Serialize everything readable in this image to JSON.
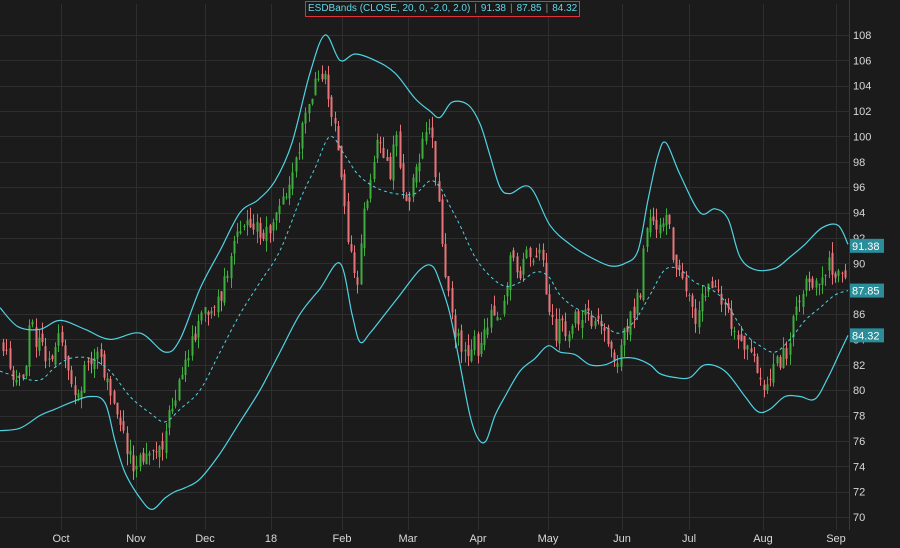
{
  "study": {
    "label": "ESDBands (CLOSE, 20, 0, -2.0, 2.0)",
    "upper": "91.38",
    "middle": "87.85",
    "lower": "84.32"
  },
  "colors": {
    "background": "#1b1b1b",
    "grid": "#2e2e2e",
    "band": "#4fd3e3",
    "up_candle": "#3fae3f",
    "down_candle": "#e8747a",
    "text": "#d8d8d8",
    "label_box": "#2a8d99"
  },
  "chart_data": {
    "type": "candlestick",
    "title": "",
    "x_labels": [
      "Oct",
      "Nov",
      "Dec",
      "18",
      "Feb",
      "Mar",
      "Apr",
      "May",
      "Jun",
      "Jul",
      "Aug",
      "Sep"
    ],
    "y_ticks": [
      70,
      72,
      74,
      76,
      78,
      80,
      82,
      84,
      86,
      88,
      90,
      92,
      94,
      96,
      98,
      100,
      102,
      104,
      106,
      108
    ],
    "ylim": [
      69.2,
      110
    ],
    "grid": true,
    "axis_position": "right",
    "price_labels": [
      {
        "value": 91.38,
        "text": "91.38",
        "series": "upper band"
      },
      {
        "value": 87.85,
        "text": "87.85",
        "series": "middle band"
      },
      {
        "value": 84.32,
        "text": "84.32",
        "series": "lower band"
      }
    ],
    "close_path": [
      [
        0,
        84.0
      ],
      [
        8,
        83.0
      ],
      [
        15,
        80.0
      ],
      [
        20,
        82.0
      ],
      [
        24,
        81.5
      ],
      [
        30,
        85.0
      ],
      [
        40,
        83.5
      ],
      [
        52,
        82.0
      ],
      [
        60,
        85.5
      ],
      [
        67,
        81.0
      ],
      [
        78,
        80.0
      ],
      [
        88,
        82.0
      ],
      [
        100,
        83.0
      ],
      [
        108,
        80.0
      ],
      [
        116,
        79.0
      ],
      [
        122,
        77.0
      ],
      [
        128,
        75.0
      ],
      [
        132,
        74.0
      ],
      [
        140,
        74.5
      ],
      [
        150,
        75.5
      ],
      [
        160,
        75.5
      ],
      [
        170,
        78.0
      ],
      [
        178,
        81.0
      ],
      [
        185,
        82.5
      ],
      [
        195,
        84.0
      ],
      [
        203,
        86.5
      ],
      [
        213,
        86.0
      ],
      [
        222,
        88.0
      ],
      [
        232,
        91.0
      ],
      [
        242,
        92.5
      ],
      [
        252,
        93.0
      ],
      [
        262,
        92.0
      ],
      [
        272,
        93.0
      ],
      [
        282,
        95.0
      ],
      [
        292,
        97.0
      ],
      [
        302,
        100.5
      ],
      [
        312,
        103.5
      ],
      [
        318,
        104.5
      ],
      [
        324,
        105.5
      ],
      [
        330,
        102.0
      ],
      [
        336,
        101.0
      ],
      [
        340,
        97.0
      ],
      [
        346,
        93.0
      ],
      [
        352,
        90.0
      ],
      [
        358,
        88.5
      ],
      [
        364,
        94.0
      ],
      [
        370,
        96.0
      ],
      [
        376,
        99.0
      ],
      [
        384,
        98.5
      ],
      [
        390,
        97.0
      ],
      [
        396,
        100.5
      ],
      [
        402,
        95.0
      ],
      [
        408,
        94.0
      ],
      [
        412,
        96.0
      ],
      [
        418,
        97.5
      ],
      [
        424,
        101.0
      ],
      [
        430,
        100.5
      ],
      [
        436,
        97.0
      ],
      [
        442,
        91.0
      ],
      [
        448,
        87.5
      ],
      [
        454,
        84.5
      ],
      [
        460,
        83.5
      ],
      [
        466,
        82.5
      ],
      [
        472,
        84.0
      ],
      [
        478,
        83.0
      ],
      [
        484,
        85.0
      ],
      [
        492,
        86.5
      ],
      [
        500,
        86.0
      ],
      [
        508,
        89.5
      ],
      [
        514,
        90.5
      ],
      [
        520,
        89.5
      ],
      [
        526,
        91.0
      ],
      [
        532,
        90.0
      ],
      [
        538,
        91.5
      ],
      [
        544,
        89.0
      ],
      [
        550,
        86.0
      ],
      [
        556,
        84.5
      ],
      [
        562,
        85.5
      ],
      [
        568,
        84.0
      ],
      [
        574,
        86.5
      ],
      [
        580,
        85.0
      ],
      [
        586,
        86.0
      ],
      [
        592,
        84.5
      ],
      [
        598,
        86.0
      ],
      [
        604,
        84.0
      ],
      [
        610,
        83.5
      ],
      [
        616,
        82.5
      ],
      [
        622,
        84.0
      ],
      [
        628,
        85.5
      ],
      [
        634,
        86.5
      ],
      [
        640,
        88.0
      ],
      [
        644,
        92.0
      ],
      [
        650,
        93.5
      ],
      [
        656,
        92.5
      ],
      [
        662,
        94.0
      ],
      [
        668,
        93.5
      ],
      [
        674,
        90.0
      ],
      [
        680,
        89.0
      ],
      [
        686,
        87.5
      ],
      [
        692,
        86.0
      ],
      [
        698,
        85.5
      ],
      [
        704,
        88.0
      ],
      [
        710,
        87.5
      ],
      [
        716,
        88.0
      ],
      [
        722,
        86.5
      ],
      [
        728,
        86.0
      ],
      [
        734,
        84.5
      ],
      [
        740,
        84.0
      ],
      [
        746,
        83.0
      ],
      [
        752,
        83.5
      ],
      [
        758,
        81.5
      ],
      [
        762,
        79.5
      ],
      [
        768,
        80.5
      ],
      [
        774,
        81.5
      ],
      [
        780,
        82.5
      ],
      [
        786,
        83.0
      ],
      [
        792,
        85.5
      ],
      [
        798,
        87.0
      ],
      [
        804,
        88.0
      ],
      [
        810,
        89.0
      ],
      [
        816,
        88.5
      ],
      [
        822,
        89.5
      ],
      [
        828,
        90.0
      ],
      [
        834,
        89.5
      ],
      [
        840,
        89.0
      ],
      [
        845,
        88.5
      ],
      [
        848,
        88.0
      ]
    ],
    "upper_band": [
      [
        0,
        86.5
      ],
      [
        18,
        85.0
      ],
      [
        40,
        84.8
      ],
      [
        60,
        85.5
      ],
      [
        85,
        84.8
      ],
      [
        110,
        84.0
      ],
      [
        140,
        84.5
      ],
      [
        165,
        83.0
      ],
      [
        180,
        84.0
      ],
      [
        200,
        88.0
      ],
      [
        220,
        91.0
      ],
      [
        240,
        94.0
      ],
      [
        258,
        95.0
      ],
      [
        275,
        96.5
      ],
      [
        292,
        99.5
      ],
      [
        310,
        105.0
      ],
      [
        325,
        108.0
      ],
      [
        340,
        106.0
      ],
      [
        355,
        106.5
      ],
      [
        375,
        106.0
      ],
      [
        395,
        105.0
      ],
      [
        415,
        103.0
      ],
      [
        430,
        102.0
      ],
      [
        440,
        101.5
      ],
      [
        452,
        102.7
      ],
      [
        468,
        102.5
      ],
      [
        480,
        101.0
      ],
      [
        490,
        98.5
      ],
      [
        500,
        96.0
      ],
      [
        510,
        95.5
      ],
      [
        530,
        96.0
      ],
      [
        550,
        93.0
      ],
      [
        570,
        91.5
      ],
      [
        590,
        90.5
      ],
      [
        610,
        89.8
      ],
      [
        625,
        90.0
      ],
      [
        638,
        91.0
      ],
      [
        648,
        95.0
      ],
      [
        658,
        98.5
      ],
      [
        666,
        99.5
      ],
      [
        680,
        97.0
      ],
      [
        700,
        94.0
      ],
      [
        715,
        94.3
      ],
      [
        728,
        93.5
      ],
      [
        740,
        90.5
      ],
      [
        755,
        89.5
      ],
      [
        775,
        89.6
      ],
      [
        790,
        90.5
      ],
      [
        805,
        91.5
      ],
      [
        822,
        92.8
      ],
      [
        838,
        93.0
      ],
      [
        848,
        91.5
      ]
    ],
    "middle_band": [
      [
        0,
        81.5
      ],
      [
        20,
        81.0
      ],
      [
        40,
        80.8
      ],
      [
        55,
        81.8
      ],
      [
        70,
        82.5
      ],
      [
        90,
        82.5
      ],
      [
        110,
        81.5
      ],
      [
        130,
        79.5
      ],
      [
        150,
        78.2
      ],
      [
        165,
        77.5
      ],
      [
        180,
        78.5
      ],
      [
        200,
        80.0
      ],
      [
        220,
        83.0
      ],
      [
        240,
        86.0
      ],
      [
        260,
        88.5
      ],
      [
        280,
        91.0
      ],
      [
        300,
        95.0
      ],
      [
        315,
        97.5
      ],
      [
        330,
        100.0
      ],
      [
        345,
        98.5
      ],
      [
        358,
        97.0
      ],
      [
        375,
        96.0
      ],
      [
        395,
        95.5
      ],
      [
        415,
        95.5
      ],
      [
        430,
        96.5
      ],
      [
        440,
        96.0
      ],
      [
        450,
        94.5
      ],
      [
        460,
        93.0
      ],
      [
        475,
        90.5
      ],
      [
        490,
        89.0
      ],
      [
        505,
        88.2
      ],
      [
        520,
        88.5
      ],
      [
        535,
        89.3
      ],
      [
        548,
        89.0
      ],
      [
        560,
        87.5
      ],
      [
        575,
        86.5
      ],
      [
        590,
        86.0
      ],
      [
        605,
        85.0
      ],
      [
        620,
        84.5
      ],
      [
        635,
        85.5
      ],
      [
        650,
        87.5
      ],
      [
        665,
        89.5
      ],
      [
        680,
        89.5
      ],
      [
        695,
        88.5
      ],
      [
        710,
        88.0
      ],
      [
        725,
        87.0
      ],
      [
        745,
        84.5
      ],
      [
        760,
        83.5
      ],
      [
        775,
        83.0
      ],
      [
        790,
        84.0
      ],
      [
        805,
        85.5
      ],
      [
        820,
        86.5
      ],
      [
        835,
        87.5
      ],
      [
        848,
        87.85
      ]
    ],
    "lower_band": [
      [
        0,
        76.8
      ],
      [
        20,
        77.0
      ],
      [
        40,
        78.0
      ],
      [
        55,
        78.5
      ],
      [
        70,
        79.0
      ],
      [
        90,
        79.5
      ],
      [
        105,
        79.0
      ],
      [
        115,
        76.0
      ],
      [
        125,
        73.5
      ],
      [
        140,
        71.5
      ],
      [
        152,
        70.6
      ],
      [
        165,
        71.5
      ],
      [
        175,
        72.0
      ],
      [
        185,
        72.3
      ],
      [
        200,
        73.0
      ],
      [
        220,
        75.0
      ],
      [
        240,
        77.5
      ],
      [
        260,
        80.0
      ],
      [
        280,
        83.0
      ],
      [
        300,
        86.0
      ],
      [
        320,
        88.0
      ],
      [
        340,
        90.0
      ],
      [
        352,
        86.0
      ],
      [
        360,
        83.8
      ],
      [
        370,
        84.5
      ],
      [
        385,
        86.0
      ],
      [
        400,
        87.5
      ],
      [
        420,
        89.5
      ],
      [
        432,
        89.8
      ],
      [
        440,
        88.5
      ],
      [
        450,
        86.0
      ],
      [
        460,
        82.0
      ],
      [
        470,
        78.0
      ],
      [
        478,
        76.2
      ],
      [
        486,
        76.0
      ],
      [
        495,
        78.0
      ],
      [
        505,
        79.5
      ],
      [
        520,
        81.5
      ],
      [
        535,
        82.5
      ],
      [
        548,
        83.5
      ],
      [
        560,
        83.0
      ],
      [
        575,
        82.8
      ],
      [
        590,
        82.0
      ],
      [
        605,
        82.0
      ],
      [
        620,
        82.5
      ],
      [
        635,
        82.5
      ],
      [
        650,
        82.0
      ],
      [
        660,
        81.3
      ],
      [
        675,
        81.0
      ],
      [
        690,
        81.0
      ],
      [
        705,
        82.0
      ],
      [
        725,
        81.5
      ],
      [
        745,
        79.5
      ],
      [
        758,
        78.3
      ],
      [
        770,
        78.5
      ],
      [
        785,
        79.5
      ],
      [
        800,
        79.5
      ],
      [
        815,
        79.3
      ],
      [
        828,
        81.0
      ],
      [
        840,
        83.0
      ],
      [
        848,
        84.32
      ]
    ]
  }
}
